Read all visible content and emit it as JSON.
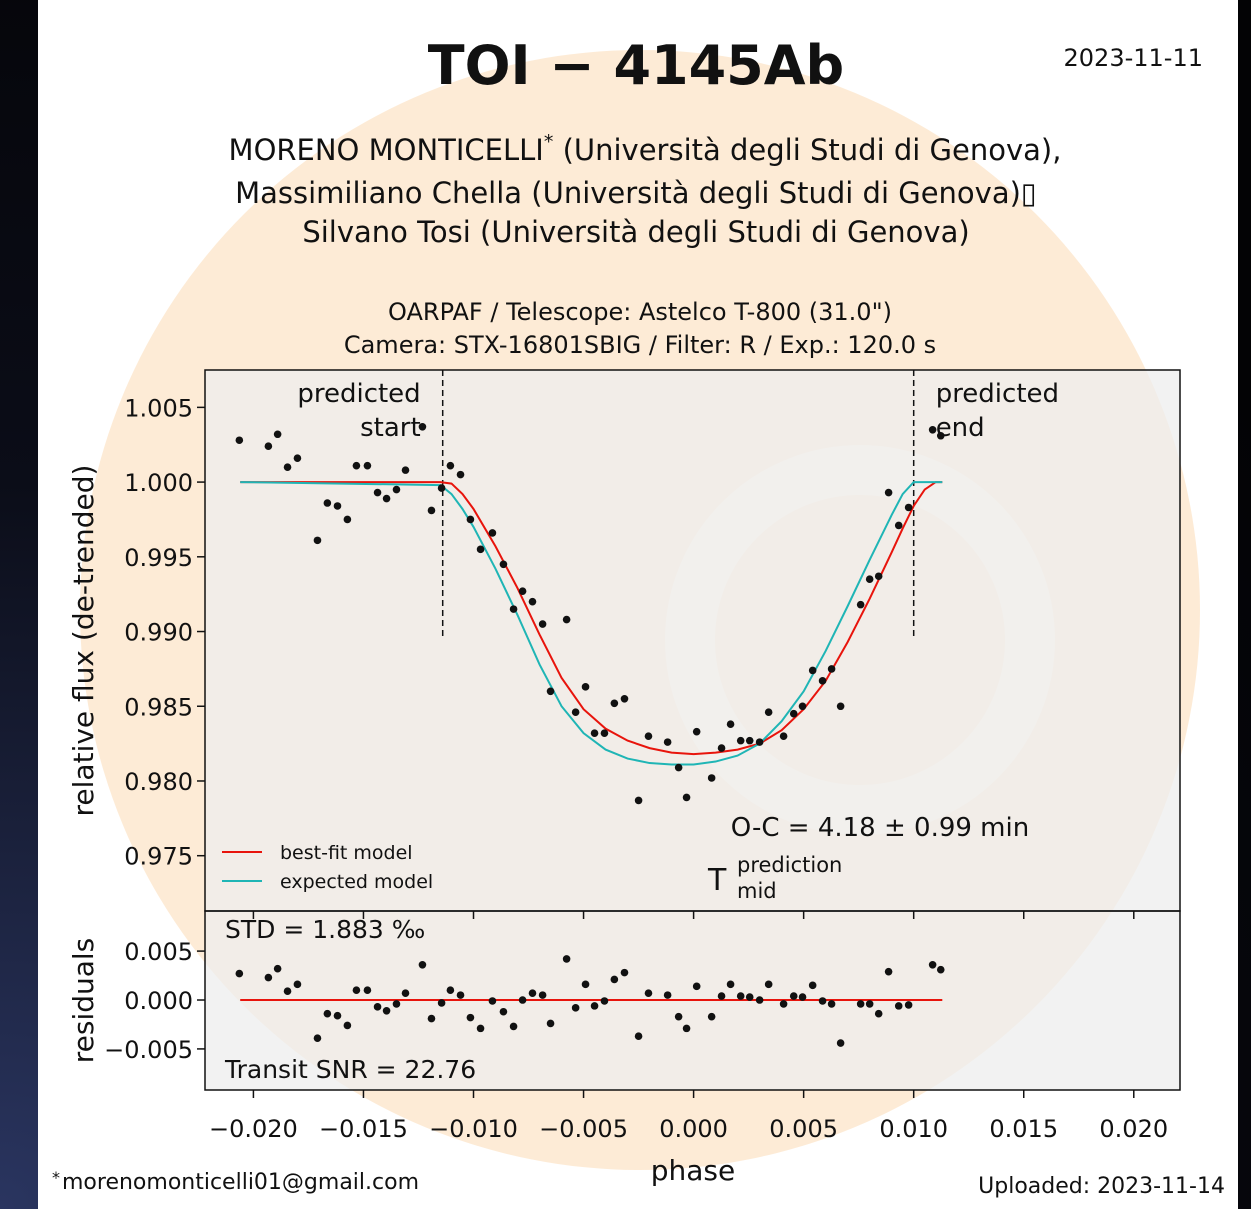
{
  "header": {
    "title": "TOI − 4145Ab",
    "date": "2023-11-11",
    "authors": [
      {
        "name": "MORENO MONTICELLI",
        "mark": "*",
        "rest": " (Università degli Studi di Genova),"
      },
      "Massimiliano Chella (Università degli Studi di Genova)▯",
      "Silvano Tosi (Università degli Studi di Genova)"
    ]
  },
  "footer": {
    "mark": "*",
    "email": "morenomonticelli01@gmail.com",
    "uploaded": "Uploaded: 2023-11-14"
  },
  "chart_data": [
    {
      "type": "scatter",
      "title_lines": [
        "OARPAF / Telescope: Astelco T-800 (31.0\")",
        "Camera: STX-16801SBIG / Filter: R / Exp.: 120.0 s"
      ],
      "y_label": "relative flux (de-trended)",
      "color": "#111111",
      "xlim": [
        -0.0222,
        0.0221
      ],
      "ylim": [
        0.9713,
        1.0075
      ],
      "yticks": [
        {
          "value": 1.005,
          "label": "1.005"
        },
        {
          "value": 1,
          "label": "1.000"
        },
        {
          "value": 0.995,
          "label": "0.995"
        },
        {
          "value": 0.99,
          "label": "0.990"
        },
        {
          "value": 0.985,
          "label": "0.985"
        },
        {
          "value": 0.98,
          "label": "0.980"
        },
        {
          "value": 0.975,
          "label": "0.975"
        }
      ],
      "x": [
        -0.02064,
        -0.01932,
        -0.0189,
        -0.01845,
        -0.018,
        -0.01709,
        -0.01664,
        -0.01618,
        -0.01573,
        -0.01532,
        -0.01482,
        -0.01436,
        -0.01395,
        -0.0135,
        -0.01309,
        -0.01232,
        -0.01191,
        -0.01145,
        -0.01105,
        -0.01059,
        -0.01014,
        -0.00968,
        -0.00914,
        -0.00864,
        -0.00818,
        -0.00777,
        -0.00732,
        -0.00686,
        -0.0065,
        -0.00577,
        -0.00536,
        -0.00491,
        -0.0045,
        -0.00405,
        -0.0036,
        -0.00314,
        -0.0025,
        -0.00205,
        -0.00118,
        -0.00068,
        -0.00032,
        0.00014,
        0.00082,
        0.00127,
        0.00168,
        0.00214,
        0.00255,
        0.003,
        0.00341,
        0.00409,
        0.00455,
        0.00495,
        0.00541,
        0.00586,
        0.00627,
        0.00668,
        0.00759,
        0.008,
        0.00841,
        0.00886,
        0.00932,
        0.00977,
        0.01086,
        0.01123
      ],
      "values": [
        1.0028,
        1.0024,
        1.0032,
        1.001,
        1.0016,
        0.9961,
        0.9986,
        0.9984,
        0.9975,
        1.0011,
        1.0011,
        0.9993,
        0.9989,
        0.9995,
        1.0008,
        1.0037,
        0.9981,
        0.9996,
        1.0011,
        1.0005,
        0.9975,
        0.9955,
        0.9966,
        0.9945,
        0.9915,
        0.9927,
        0.992,
        0.9905,
        0.986,
        0.9908,
        0.9846,
        0.9863,
        0.9832,
        0.9832,
        0.9852,
        0.9855,
        0.9787,
        0.983,
        0.9826,
        0.9809,
        0.9789,
        0.9833,
        0.9802,
        0.9822,
        0.9838,
        0.9827,
        0.9827,
        0.9826,
        0.9846,
        0.983,
        0.9845,
        0.985,
        0.9874,
        0.9867,
        0.9875,
        0.985,
        0.9918,
        0.9935,
        0.9937,
        0.9993,
        0.9971,
        0.9983,
        1.0035,
        1.0031
      ],
      "models": [
        {
          "name": "best-fit model",
          "color": "#e8140c",
          "x": [
            -0.0206,
            -0.0115,
            -0.011,
            -0.0105,
            -0.01,
            -0.009,
            -0.008,
            -0.007,
            -0.006,
            -0.005,
            -0.004,
            -0.003,
            -0.002,
            -0.001,
            0,
            0.001,
            0.002,
            0.003,
            0.004,
            0.005,
            0.006,
            0.007,
            0.008,
            0.009,
            0.0095,
            0.01,
            0.0105,
            0.011,
            0.0113
          ],
          "values": [
            1,
            1,
            0.9999,
            0.9992,
            0.9982,
            0.9957,
            0.9929,
            0.9898,
            0.9869,
            0.9848,
            0.9835,
            0.9827,
            0.9822,
            0.9819,
            0.9818,
            0.9819,
            0.9821,
            0.9825,
            0.9834,
            0.9848,
            0.9867,
            0.9893,
            0.9922,
            0.9953,
            0.9969,
            0.9984,
            0.9995,
            1,
            1
          ]
        },
        {
          "name": "expected model",
          "color": "#1fb5b5",
          "x": [
            -0.0206,
            -0.0115,
            -0.011,
            -0.0105,
            -0.01,
            -0.009,
            -0.008,
            -0.007,
            -0.006,
            -0.005,
            -0.004,
            -0.003,
            -0.002,
            -0.001,
            0,
            0.001,
            0.002,
            0.003,
            0.004,
            0.005,
            0.006,
            0.007,
            0.008,
            0.009,
            0.0095,
            0.01,
            0.0105,
            0.011,
            0.0113
          ],
          "values": [
            1,
            0.9998,
            0.9992,
            0.9982,
            0.997,
            0.9942,
            0.9911,
            0.9878,
            0.985,
            0.9832,
            0.9821,
            0.9815,
            0.9812,
            0.9811,
            0.9811,
            0.9813,
            0.9817,
            0.9825,
            0.984,
            0.986,
            0.9887,
            0.9917,
            0.9948,
            0.9978,
            0.9992,
            1,
            1,
            1,
            1
          ]
        }
      ],
      "predicted_start": {
        "value": -0.0114,
        "lines": [
          "predicted",
          "start"
        ]
      },
      "predicted_end": {
        "value": 0.01,
        "lines": [
          "predicted",
          "end"
        ]
      },
      "annotation": "O-C = 4.18 ± 0.99 min",
      "tmid": {
        "symbol": "T",
        "sup": "prediction",
        "sub": "mid"
      }
    },
    {
      "type": "scatter",
      "y_label": "residuals",
      "x_label": "phase",
      "color": "#111111",
      "xlim": [
        -0.0222,
        0.0221
      ],
      "ylim": [
        -0.0092,
        0.0091
      ],
      "yticks": [
        {
          "value": 0.005,
          "label": "0.005"
        },
        {
          "value": 0,
          "label": "0.000"
        },
        {
          "value": -0.005,
          "label": "−0.005"
        }
      ],
      "xticks": [
        {
          "value": -0.02,
          "label": "−0.020"
        },
        {
          "value": -0.015,
          "label": "−0.015"
        },
        {
          "value": -0.01,
          "label": "−0.010"
        },
        {
          "value": -0.005,
          "label": "−0.005"
        },
        {
          "value": 0,
          "label": "0.000"
        },
        {
          "value": 0.005,
          "label": "0.005"
        },
        {
          "value": 0.01,
          "label": "0.010"
        },
        {
          "value": 0.015,
          "label": "0.015"
        },
        {
          "value": 0.02,
          "label": "0.020"
        }
      ],
      "x": [
        -0.02064,
        -0.01932,
        -0.0189,
        -0.01845,
        -0.018,
        -0.01709,
        -0.01664,
        -0.01618,
        -0.01573,
        -0.01532,
        -0.01482,
        -0.01436,
        -0.01395,
        -0.0135,
        -0.01309,
        -0.01232,
        -0.01191,
        -0.01145,
        -0.01105,
        -0.01059,
        -0.01014,
        -0.00968,
        -0.00914,
        -0.00864,
        -0.00818,
        -0.00777,
        -0.00732,
        -0.00686,
        -0.0065,
        -0.00577,
        -0.00536,
        -0.00491,
        -0.0045,
        -0.00405,
        -0.0036,
        -0.00314,
        -0.0025,
        -0.00205,
        -0.00118,
        -0.00068,
        -0.00032,
        0.00014,
        0.00082,
        0.00127,
        0.00168,
        0.00214,
        0.00255,
        0.003,
        0.00341,
        0.00409,
        0.00455,
        0.00495,
        0.00541,
        0.00586,
        0.00627,
        0.00668,
        0.00759,
        0.008,
        0.00841,
        0.00886,
        0.00932,
        0.00977,
        0.01086,
        0.01123
      ],
      "values": [
        0.0027,
        0.0023,
        0.0032,
        0.0009,
        0.0016,
        -0.0039,
        -0.0014,
        -0.0016,
        -0.0026,
        0.001,
        0.001,
        -0.0007,
        -0.0011,
        -0.0004,
        0.0007,
        0.0036,
        -0.0019,
        -0.0003,
        0.001,
        0.0005,
        -0.0018,
        -0.0029,
        -0.0001,
        -0.0012,
        -0.0027,
        0,
        0.0007,
        0.0005,
        -0.0024,
        0.0042,
        -0.0008,
        0.0016,
        -0.0006,
        -0.0001,
        0.0021,
        0.0028,
        -0.0037,
        0.0007,
        0.0005,
        -0.0017,
        -0.0029,
        0.0014,
        -0.0017,
        0.0004,
        0.0016,
        0.0004,
        0.0003,
        0,
        0.0016,
        -0.0004,
        0.0004,
        0.0003,
        0.0015,
        -0.0001,
        -0.0004,
        -0.0044,
        -0.0004,
        -0.0004,
        -0.0014,
        0.0029,
        -0.0006,
        -0.0005,
        0.0036,
        0.0031
      ],
      "baseline": {
        "color": "#e8140c",
        "x": [
          -0.0206,
          0.0113
        ],
        "values": [
          0,
          0
        ]
      },
      "std": "STD = 1.883 ‰",
      "snr": "Transit SNR = 22.76"
    }
  ]
}
